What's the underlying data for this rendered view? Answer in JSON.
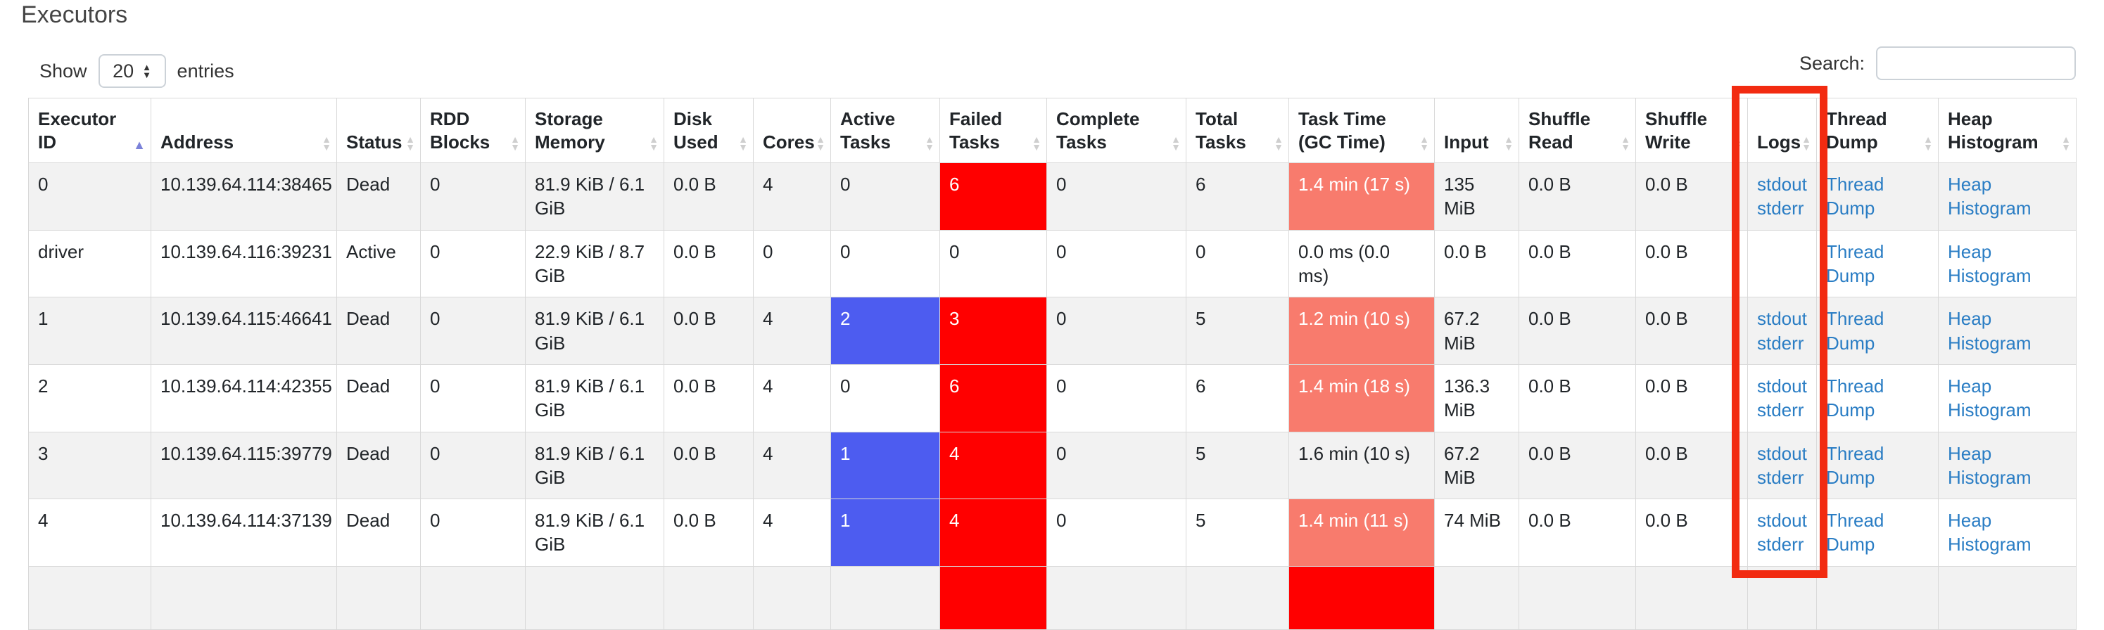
{
  "page": {
    "title": "Executors"
  },
  "controls": {
    "show_label": "Show",
    "page_size": "20",
    "entries_label": "entries",
    "search_label": "Search:",
    "search_value": ""
  },
  "colors": {
    "failed_red": "#ff0000",
    "active_blue": "#4d5cf0",
    "task_time_red": "#f87b6d",
    "link_blue": "#2a7dc4",
    "annotation_red": "#f22b11",
    "sorted_arrow": "#7b82d9"
  },
  "annotation": {
    "shape": "rectangle",
    "highlights": "logs-column",
    "color": "#f22b11"
  },
  "table": {
    "columns": [
      {
        "id": "executor-id",
        "label": "Executor ID",
        "sort": "asc"
      },
      {
        "id": "address",
        "label": "Address",
        "sort": "none"
      },
      {
        "id": "status",
        "label": "Status",
        "sort": "none"
      },
      {
        "id": "rdd-blocks",
        "label": "RDD Blocks",
        "sort": "none"
      },
      {
        "id": "storage-memory",
        "label": "Storage Memory",
        "sort": "none"
      },
      {
        "id": "disk-used",
        "label": "Disk Used",
        "sort": "none"
      },
      {
        "id": "cores",
        "label": "Cores",
        "sort": "none"
      },
      {
        "id": "active-tasks",
        "label": "Active Tasks",
        "sort": "none"
      },
      {
        "id": "failed-tasks",
        "label": "Failed Tasks",
        "sort": "none"
      },
      {
        "id": "complete-tasks",
        "label": "Complete Tasks",
        "sort": "none"
      },
      {
        "id": "total-tasks",
        "label": "Total Tasks",
        "sort": "none"
      },
      {
        "id": "task-time",
        "label": "Task Time (GC Time)",
        "sort": "none"
      },
      {
        "id": "input",
        "label": "Input",
        "sort": "none"
      },
      {
        "id": "shuffle-read",
        "label": "Shuffle Read",
        "sort": "none"
      },
      {
        "id": "shuffle-write",
        "label": "Shuffle Write",
        "sort": "none"
      },
      {
        "id": "logs",
        "label": "Logs",
        "sort": "none"
      },
      {
        "id": "thread-dump",
        "label": "Thread Dump",
        "sort": "none"
      },
      {
        "id": "heap-histogram",
        "label": "Heap Histogram",
        "sort": "none"
      }
    ],
    "rows": [
      {
        "cells": [
          {
            "t": "0"
          },
          {
            "t": "10.139.64.114:38465"
          },
          {
            "t": "Dead"
          },
          {
            "t": "0"
          },
          {
            "t": "81.9 KiB / 6.1 GiB"
          },
          {
            "t": "0.0 B"
          },
          {
            "t": "4"
          },
          {
            "t": "0"
          },
          {
            "t": "6",
            "bg": "red"
          },
          {
            "t": "0"
          },
          {
            "t": "6"
          },
          {
            "t": "1.4 min (17 s)",
            "bg": "salmon"
          },
          {
            "t": "135 MiB"
          },
          {
            "t": "0.0 B"
          },
          {
            "t": "0.0 B"
          },
          {
            "links": [
              "stdout",
              "stderr"
            ]
          },
          {
            "links": [
              "Thread Dump"
            ]
          },
          {
            "links": [
              "Heap Histogram"
            ]
          }
        ]
      },
      {
        "cells": [
          {
            "t": "driver"
          },
          {
            "t": "10.139.64.116:39231"
          },
          {
            "t": "Active"
          },
          {
            "t": "0"
          },
          {
            "t": "22.9 KiB / 8.7 GiB"
          },
          {
            "t": "0.0 B"
          },
          {
            "t": "0"
          },
          {
            "t": "0"
          },
          {
            "t": "0"
          },
          {
            "t": "0"
          },
          {
            "t": "0"
          },
          {
            "t": "0.0 ms (0.0 ms)"
          },
          {
            "t": "0.0 B"
          },
          {
            "t": "0.0 B"
          },
          {
            "t": "0.0 B"
          },
          {
            "t": ""
          },
          {
            "links": [
              "Thread Dump"
            ]
          },
          {
            "links": [
              "Heap Histogram"
            ]
          }
        ]
      },
      {
        "cells": [
          {
            "t": "1"
          },
          {
            "t": "10.139.64.115:46641"
          },
          {
            "t": "Dead"
          },
          {
            "t": "0"
          },
          {
            "t": "81.9 KiB / 6.1 GiB"
          },
          {
            "t": "0.0 B"
          },
          {
            "t": "4"
          },
          {
            "t": "2",
            "bg": "blue"
          },
          {
            "t": "3",
            "bg": "red"
          },
          {
            "t": "0"
          },
          {
            "t": "5"
          },
          {
            "t": "1.2 min (10 s)",
            "bg": "salmon"
          },
          {
            "t": "67.2 MiB"
          },
          {
            "t": "0.0 B"
          },
          {
            "t": "0.0 B"
          },
          {
            "links": [
              "stdout",
              "stderr"
            ]
          },
          {
            "links": [
              "Thread Dump"
            ]
          },
          {
            "links": [
              "Heap Histogram"
            ]
          }
        ]
      },
      {
        "cells": [
          {
            "t": "2"
          },
          {
            "t": "10.139.64.114:42355"
          },
          {
            "t": "Dead"
          },
          {
            "t": "0"
          },
          {
            "t": "81.9 KiB / 6.1 GiB"
          },
          {
            "t": "0.0 B"
          },
          {
            "t": "4"
          },
          {
            "t": "0"
          },
          {
            "t": "6",
            "bg": "red"
          },
          {
            "t": "0"
          },
          {
            "t": "6"
          },
          {
            "t": "1.4 min (18 s)",
            "bg": "salmon"
          },
          {
            "t": "136.3 MiB"
          },
          {
            "t": "0.0 B"
          },
          {
            "t": "0.0 B"
          },
          {
            "links": [
              "stdout",
              "stderr"
            ]
          },
          {
            "links": [
              "Thread Dump"
            ]
          },
          {
            "links": [
              "Heap Histogram"
            ]
          }
        ]
      },
      {
        "cells": [
          {
            "t": "3"
          },
          {
            "t": "10.139.64.115:39779"
          },
          {
            "t": "Dead"
          },
          {
            "t": "0"
          },
          {
            "t": "81.9 KiB / 6.1 GiB"
          },
          {
            "t": "0.0 B"
          },
          {
            "t": "4"
          },
          {
            "t": "1",
            "bg": "blue"
          },
          {
            "t": "4",
            "bg": "red"
          },
          {
            "t": "0"
          },
          {
            "t": "5"
          },
          {
            "t": "1.6 min (10 s)"
          },
          {
            "t": "67.2 MiB"
          },
          {
            "t": "0.0 B"
          },
          {
            "t": "0.0 B"
          },
          {
            "links": [
              "stdout",
              "stderr"
            ]
          },
          {
            "links": [
              "Thread Dump"
            ]
          },
          {
            "links": [
              "Heap Histogram"
            ]
          }
        ]
      },
      {
        "cells": [
          {
            "t": "4"
          },
          {
            "t": "10.139.64.114:37139"
          },
          {
            "t": "Dead"
          },
          {
            "t": "0"
          },
          {
            "t": "81.9 KiB / 6.1 GiB"
          },
          {
            "t": "0.0 B"
          },
          {
            "t": "4"
          },
          {
            "t": "1",
            "bg": "blue"
          },
          {
            "t": "4",
            "bg": "red"
          },
          {
            "t": "0"
          },
          {
            "t": "5"
          },
          {
            "t": "1.4 min (11 s)",
            "bg": "salmon"
          },
          {
            "t": "74 MiB"
          },
          {
            "t": "0.0 B"
          },
          {
            "t": "0.0 B"
          },
          {
            "links": [
              "stdout",
              "stderr"
            ]
          },
          {
            "links": [
              "Thread Dump"
            ]
          },
          {
            "links": [
              "Heap Histogram"
            ]
          }
        ]
      },
      {
        "partial": true,
        "cells": [
          {
            "t": ""
          },
          {
            "t": ""
          },
          {
            "t": ""
          },
          {
            "t": ""
          },
          {
            "t": ""
          },
          {
            "t": ""
          },
          {
            "t": ""
          },
          {
            "t": ""
          },
          {
            "t": "",
            "bg": "red"
          },
          {
            "t": ""
          },
          {
            "t": ""
          },
          {
            "t": "",
            "bg": "red"
          },
          {
            "t": ""
          },
          {
            "t": ""
          },
          {
            "t": ""
          },
          {
            "t": ""
          },
          {
            "t": ""
          },
          {
            "t": ""
          }
        ]
      }
    ]
  }
}
